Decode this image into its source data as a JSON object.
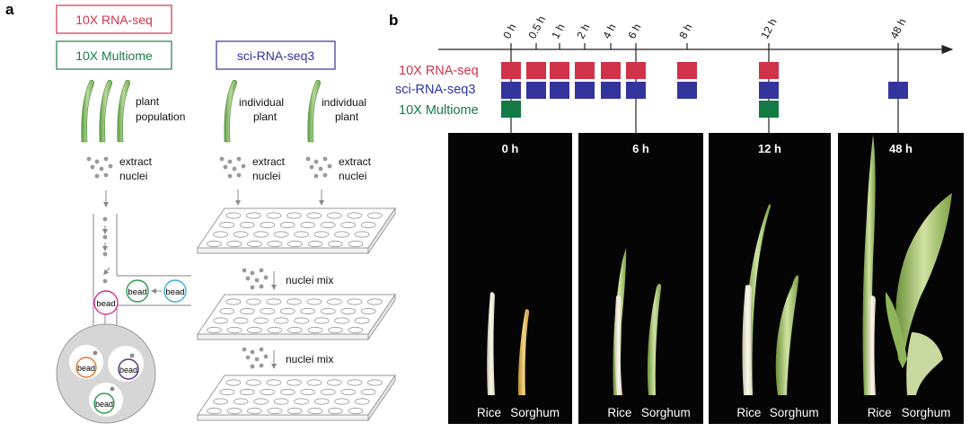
{
  "panel_a": {
    "letter": "a",
    "boxes": {
      "rna": {
        "label": "10X RNA-seq",
        "color": "#d0364a"
      },
      "multiome": {
        "label": "10X Multiome",
        "color": "#1e7b4a"
      },
      "sci": {
        "label": "sci-RNA-seq3",
        "color": "#34339a"
      }
    },
    "col1": {
      "plant_line1": "plant",
      "plant_line2": "population",
      "extract_line1": "extract",
      "extract_line2": "nuclei"
    },
    "col2": {
      "plant_line1": "individual",
      "plant_line2": "plant",
      "extract_line1": "extract",
      "extract_line2": "nuclei",
      "mix1": "nuclei mix",
      "mix2": "nuclei mix"
    },
    "bead_label": "bead",
    "bead_colors": {
      "pink": "#d62b8c",
      "green": "#2c9a4c",
      "cyan": "#3bb0d8",
      "orange": "#e07a30",
      "purple": "#5a2d82"
    }
  },
  "panel_b": {
    "letter": "b",
    "time_ticks": [
      "0 h",
      "0.5 h",
      "1 h",
      "2 h",
      "4 h",
      "6 h",
      "8 h",
      "12 h",
      "48 h"
    ],
    "rows": [
      {
        "label": "10X RNA-seq",
        "color": "#cf3249",
        "present": [
          "0 h",
          "0.5 h",
          "1 h",
          "2 h",
          "4 h",
          "6 h",
          "8 h",
          "12 h"
        ]
      },
      {
        "label": "sci-RNA-seq3",
        "color": "#33349c",
        "present": [
          "0 h",
          "0.5 h",
          "1 h",
          "2 h",
          "4 h",
          "6 h",
          "8 h",
          "12 h",
          "48 h"
        ]
      },
      {
        "label": "10X Multiome",
        "color": "#147a44",
        "present": [
          "0 h",
          "12 h"
        ]
      }
    ],
    "photos": [
      {
        "time": "0 h",
        "left": "Rice",
        "right": "Sorghum"
      },
      {
        "time": "6 h",
        "left": "Rice",
        "right": "Sorghum"
      },
      {
        "time": "12 h",
        "left": "Rice",
        "right": "Sorghum"
      },
      {
        "time": "48 h",
        "left": "Rice",
        "right": "Sorghum"
      }
    ]
  }
}
